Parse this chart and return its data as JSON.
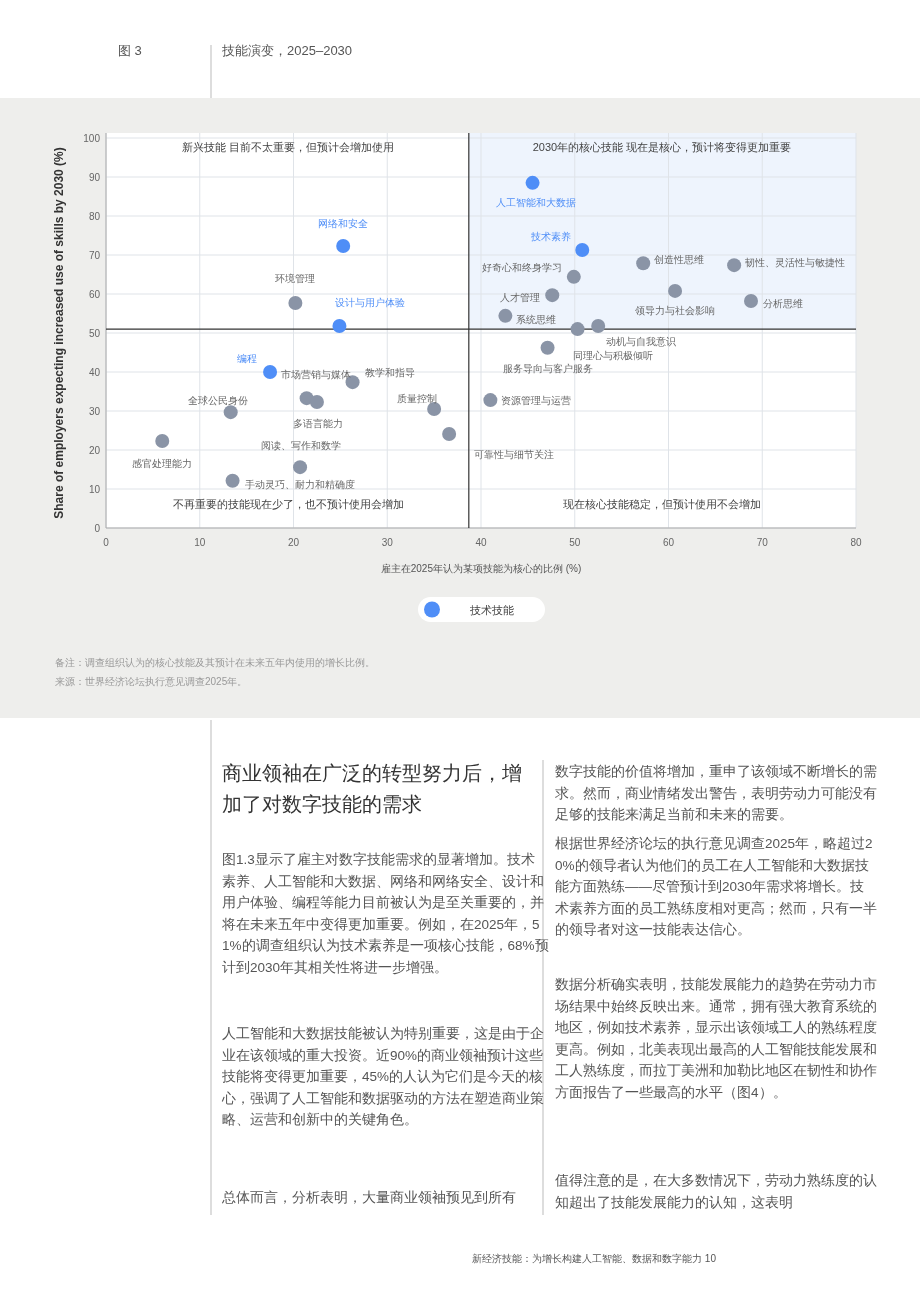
{
  "chart_data": {
    "type": "scatter",
    "title": "技能演变，2025–2030",
    "subtitle": "图 3",
    "xlabel": "雇主在2025年认为某项技能为核心的比例 (%)",
    "ylabel": "Share of employers expecting increased use of skills by 2030 (%)",
    "xlim": [
      0,
      80
    ],
    "xticks": [
      0,
      10,
      20,
      30,
      40,
      50,
      60,
      70,
      80
    ],
    "ylim": [
      0,
      100
    ],
    "yticks": [
      0,
      10,
      20,
      30,
      40,
      50,
      60,
      70,
      80,
      90,
      100
    ],
    "grid": true,
    "legend": "bottom",
    "marker": "circle",
    "series": [
      {
        "name": "技术技能",
        "color": "#4f8ef7",
        "x": [
          45.5,
          25.3,
          50.8,
          24.9,
          17.5
        ],
        "values": [
          88.5,
          72.3,
          71.3,
          51.8,
          40.0
        ]
      },
      {
        "color": "#8a94a6",
        "x": [
          20.2,
          49.9,
          47.6,
          57.3,
          67.0,
          60.7,
          68.8,
          42.6,
          50.3,
          52.5,
          47.1,
          41.0,
          36.6,
          35.0,
          26.3,
          21.4,
          22.5,
          13.3,
          6.0,
          20.7,
          13.5
        ],
        "values": [
          57.7,
          64.4,
          59.7,
          67.9,
          67.4,
          60.8,
          58.2,
          54.4,
          51.0,
          51.8,
          46.2,
          32.8,
          24.1,
          30.5,
          37.4,
          33.3,
          32.3,
          29.7,
          22.3,
          15.6,
          12.1
        ]
      }
    ],
    "ref_lines": [
      {
        "axis": "x",
        "value": 38.7,
        "color": "#333333"
      },
      {
        "axis": "y",
        "value": 51,
        "color": "#333333"
      }
    ],
    "bands": [
      {
        "axis": "x",
        "from": 38.7,
        "to": 80,
        "color": "#eef4fd"
      }
    ],
    "annotations": [
      {
        "text": "人工智能和大数据",
        "x": 45.5,
        "y": 88.5
      },
      {
        "text": "网络和安全",
        "x": 25.3,
        "y": 72.3
      },
      {
        "text": "技术素养",
        "x": 50.8,
        "y": 71.3
      },
      {
        "text": "设计与用户体验",
        "x": 24.9,
        "y": 51.8
      },
      {
        "text": "编程",
        "x": 17.5,
        "y": 40.0
      },
      {
        "text": "环境管理",
        "x": 20.2,
        "y": 57.7
      },
      {
        "text": "好奇心和终身学习",
        "x": 49.9,
        "y": 64.4
      },
      {
        "text": "人才管理",
        "x": 47.6,
        "y": 59.7
      },
      {
        "text": "创造性思维",
        "x": 57.3,
        "y": 67.9
      },
      {
        "text": "韧性、灵活性与敏捷性",
        "x": 67.0,
        "y": 67.4
      },
      {
        "text": "领导力与社会影响",
        "x": 60.7,
        "y": 60.8
      },
      {
        "text": "分析思维",
        "x": 68.8,
        "y": 58.2
      },
      {
        "text": "系统思维",
        "x": 42.6,
        "y": 54.4
      },
      {
        "text": "同理心与积极倾听",
        "x": 50.3,
        "y": 51.0
      },
      {
        "text": "动机与自我意识",
        "x": 52.5,
        "y": 51.8
      },
      {
        "text": "服务导向与客户服务",
        "x": 47.1,
        "y": 46.2
      },
      {
        "text": "资源管理与运营",
        "x": 41.0,
        "y": 32.8
      },
      {
        "text": "可靠性与细节关注",
        "x": 36.6,
        "y": 24.1
      },
      {
        "text": "质量控制",
        "x": 35.0,
        "y": 30.5
      },
      {
        "text": "教学和指导",
        "x": 26.3,
        "y": 37.4
      },
      {
        "text": "市场营销与媒体",
        "x": 21.4,
        "y": 33.3
      },
      {
        "text": "多语言能力",
        "x": 22.5,
        "y": 32.3
      },
      {
        "text": "全球公民身份",
        "x": 13.3,
        "y": 29.7
      },
      {
        "text": "感官处理能力",
        "x": 6.0,
        "y": 22.3
      },
      {
        "text": "阅读、写作和数学",
        "x": 20.7,
        "y": 15.6
      },
      {
        "text": "手动灵巧、耐力和精确度",
        "x": 13.5,
        "y": 12.1
      },
      "新兴技能 目前不太重要，但预计会增加使用",
      "2030年的核心技能 现在是核心，预计将变得更加重要",
      "不再重要的技能现在少了，也不预计使用会增加",
      "现在核心技能稳定，但预计使用不会增加",
      "备注：调查组织认为的核心技能及其预计在未来五年内使用的增长比例。",
      "来源：世界经济论坛执行意见调查2025年。",
      "商业领袖在广泛的转型努力后，增加了对数字技能的需求",
      "图1.3显示了雇主对数字技能需求的显著增加。技术素养、人工智能和大数据、网络和网络安全、设计和用户体验、编程等能力目前被认为是至关重要的，并将在未来五年中变得更加重要。例如，在2025年，51%的调查组织认为技术素养是一项核心技能，68%预计到2030年其相关性将进一步增强。",
      "人工智能和大数据技能被认为特别重要，这是由于企业在该领域的重大投资。近90%的商业领袖预计这些技能将变得更加重要，45%的人认为它们是今天的核心，强调了人工智能和数据驱动的方法在塑造商业策略、运营和创新中的关键角色。",
      "总体而言，分析表明，大量商业领袖预见到所有",
      "数字技能的价值将增加，重申了该领域不断增长的需求。然而，商业情绪发出警告，表明劳动力可能没有足够的技能来满足当前和未来的需要。",
      "根据世界经济论坛的执行意见调查2025年，略超过20%的领导者认为他们的员工在人工智能和大数据技能方面熟练——尽管预计到2030年需求将增长。技术素养方面的员工熟练度相对更高；然而，只有一半的领导者对这一技能表达信心。",
      "数据分析确实表明，技能发展能力的趋势在劳动力市场结果中始终反映出来。通常，拥有强大教育系统的地区，例如技术素养，显示出该领域工人的熟练程度更高。例如，北美表现出最高的人工智能技能发展和工人熟练度，而拉丁美洲和加勒比地区在韧性和协作方面报告了一些最高的水平（图4）。",
      "值得注意的是，在大多数情况下，劳动力熟练度的认知超出了技能发展能力的认知，这表明",
      "新经济技能：为增长构建人工智能、数据和数字能力 10"
    ]
  }
}
